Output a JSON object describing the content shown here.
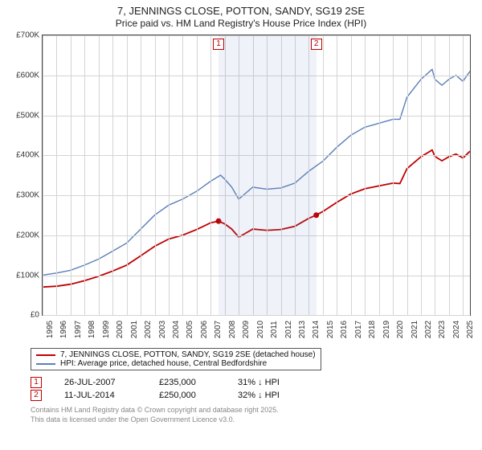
{
  "title_line1": "7, JENNINGS CLOSE, POTTON, SANDY, SG19 2SE",
  "title_line2": "Price paid vs. HM Land Registry's House Price Index (HPI)",
  "chart": {
    "type": "line",
    "x_min": 1995,
    "x_max": 2025.5,
    "y_min": 0,
    "y_max": 700000,
    "y_ticks": [
      0,
      100000,
      200000,
      300000,
      400000,
      500000,
      600000,
      700000
    ],
    "y_tick_labels": [
      "£0",
      "£100K",
      "£200K",
      "£300K",
      "£400K",
      "£500K",
      "£600K",
      "£700K"
    ],
    "x_ticks": [
      1995,
      1996,
      1997,
      1998,
      1999,
      2000,
      2001,
      2002,
      2003,
      2004,
      2005,
      2006,
      2007,
      2008,
      2009,
      2010,
      2011,
      2012,
      2013,
      2014,
      2015,
      2016,
      2017,
      2018,
      2019,
      2020,
      2021,
      2022,
      2023,
      2024,
      2025
    ],
    "grid_color": "#d4d4d4",
    "background": "#ffffff",
    "shade_ranges": [
      {
        "x0": 2007.56,
        "x1": 2014.53
      }
    ],
    "shade_color": "rgba(100,130,200,0.10)",
    "series": [
      {
        "id": "hpi",
        "label": "HPI: Average price, detached house, Central Bedfordshire",
        "color": "#5b7fb8",
        "line_width": 1.4,
        "xs": [
          1995,
          1996,
          1997,
          1998,
          1999,
          2000,
          2001,
          2002,
          2003,
          2004,
          2005,
          2006,
          2007,
          2007.7,
          2008,
          2008.5,
          2009,
          2009.5,
          2010,
          2011,
          2012,
          2013,
          2014,
          2015,
          2016,
          2017,
          2018,
          2019,
          2020,
          2020.5,
          2021,
          2022,
          2022.8,
          2023,
          2023.5,
          2024,
          2024.5,
          2025,
          2025.5
        ],
        "ys": [
          100000,
          105000,
          112000,
          125000,
          140000,
          160000,
          180000,
          215000,
          250000,
          275000,
          290000,
          310000,
          335000,
          350000,
          340000,
          320000,
          290000,
          305000,
          320000,
          315000,
          318000,
          330000,
          360000,
          385000,
          420000,
          450000,
          470000,
          480000,
          490000,
          490000,
          545000,
          590000,
          615000,
          590000,
          575000,
          590000,
          600000,
          585000,
          610000
        ]
      },
      {
        "id": "property",
        "label": "7, JENNINGS CLOSE, POTTON, SANDY, SG19 2SE (detached house)",
        "color": "#c00000",
        "line_width": 1.8,
        "xs": [
          1995,
          1996,
          1997,
          1998,
          1999,
          2000,
          2001,
          2002,
          2003,
          2004,
          2005,
          2006,
          2007,
          2007.56,
          2008,
          2008.5,
          2009,
          2009.5,
          2010,
          2011,
          2012,
          2013,
          2014,
          2014.53,
          2015,
          2016,
          2017,
          2018,
          2019,
          2020,
          2020.5,
          2021,
          2022,
          2022.8,
          2023,
          2023.5,
          2024,
          2024.5,
          2025,
          2025.5
        ],
        "ys": [
          70000,
          72000,
          77000,
          86000,
          97000,
          110000,
          125000,
          148000,
          172000,
          190000,
          200000,
          214000,
          231000,
          235000,
          228000,
          215000,
          195000,
          205000,
          215000,
          212000,
          214000,
          222000,
          242000,
          250000,
          259000,
          282000,
          303000,
          316000,
          323000,
          330000,
          329000,
          366000,
          396000,
          413000,
          397000,
          386000,
          396000,
          403000,
          393000,
          410000
        ],
        "markers": [
          {
            "x": 2007.56,
            "y": 235000
          },
          {
            "x": 2014.53,
            "y": 250000
          }
        ],
        "marker_color": "#c00000",
        "marker_radius": 3.5
      }
    ],
    "event_markers": [
      {
        "n": "1",
        "x": 2007.56
      },
      {
        "n": "2",
        "x": 2014.53
      }
    ]
  },
  "legend": {
    "items": [
      {
        "color": "#c00000",
        "text": "7, JENNINGS CLOSE, POTTON, SANDY, SG19 2SE (detached house)"
      },
      {
        "color": "#5b7fb8",
        "text": "HPI: Average price, detached house, Central Bedfordshire"
      }
    ]
  },
  "sales": [
    {
      "n": "1",
      "date": "26-JUL-2007",
      "price": "£235,000",
      "delta": "31% ↓ HPI"
    },
    {
      "n": "2",
      "date": "11-JUL-2014",
      "price": "£250,000",
      "delta": "32% ↓ HPI"
    }
  ],
  "attribution_line1": "Contains HM Land Registry data © Crown copyright and database right 2025.",
  "attribution_line2": "This data is licensed under the Open Government Licence v3.0."
}
